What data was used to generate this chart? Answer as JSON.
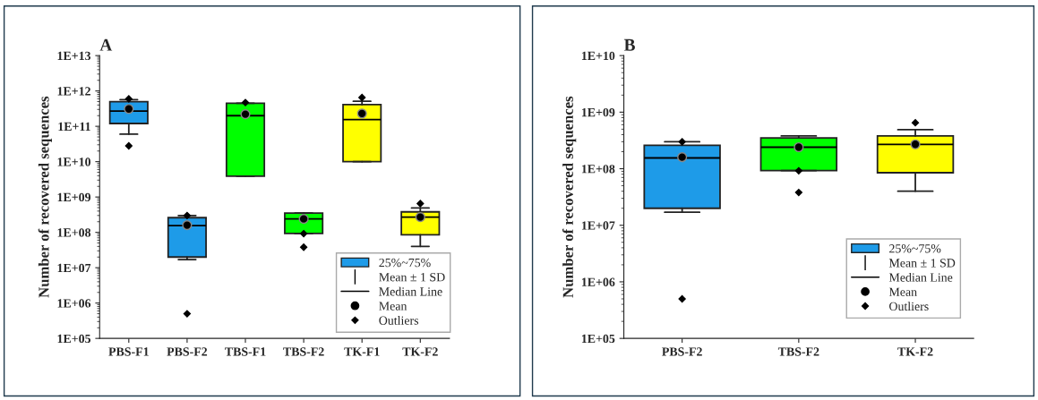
{
  "chart_data": [
    {
      "type": "box",
      "title": "A",
      "ylabel": "Number of recovered sequences",
      "log": true,
      "legend": "bottom right",
      "grid": false,
      "categories": [
        "PBS-F1",
        "PBS-F2",
        "TBS-F1",
        "TBS-F2",
        "TK-F1",
        "TK-F2"
      ],
      "ylim": [
        100000.0,
        10000000000000.0
      ],
      "yticks": [
        {
          "value": 100000.0,
          "label": "1E+05"
        },
        {
          "value": 1000000.0,
          "label": "1E+06"
        },
        {
          "value": 10000000.0,
          "label": "1E+07"
        },
        {
          "value": 100000000.0,
          "label": "1E+08"
        },
        {
          "value": 1000000000.0,
          "label": "1E+09"
        },
        {
          "value": 10000000000.0,
          "label": "1E+10"
        },
        {
          "value": 100000000000.0,
          "label": "1E+11"
        },
        {
          "value": 1000000000000.0,
          "label": "1E+12"
        },
        {
          "value": 10000000000000.0,
          "label": "1E+13"
        }
      ],
      "series": [
        {
          "name": "25%~75%",
          "colors": [
            "#1e9be8",
            "#1e9be8",
            "#00ff00",
            "#00ff00",
            "#ffff00",
            "#ffff00"
          ],
          "boxes": [
            {
              "low": 60000000000.0,
              "q1": 120000000000.0,
              "median": 270000000000.0,
              "q3": 500000000000.0,
              "high": 570000000000.0,
              "mean": 310000000000.0,
              "outliers": [
                600000000000.0,
                28000000000.0
              ]
            },
            {
              "low": 17000000.0,
              "q1": 20000000.0,
              "median": 155000000.0,
              "q3": 260000000.0,
              "high": 300000000.0,
              "mean": 160000000.0,
              "outliers": [
                300000000.0,
                500000.0
              ]
            },
            {
              "low": 3900000000.0,
              "q1": 3900000000.0,
              "median": 200000000000.0,
              "q3": 450000000000.0,
              "high": 450000000000.0,
              "mean": 220000000000.0,
              "outliers": [
                470000000000.0
              ]
            },
            {
              "low": 93000000.0,
              "q1": 93000000.0,
              "median": 240000000.0,
              "q3": 350000000.0,
              "high": 350000000.0,
              "mean": 240000000.0,
              "outliers": [
                92000000.0,
                38000000.0
              ]
            },
            {
              "low": 10000000000.0,
              "q1": 10000000000.0,
              "median": 155000000000.0,
              "q3": 410000000000.0,
              "high": 510000000000.0,
              "mean": 230000000000.0,
              "outliers": [
                650000000000.0
              ]
            },
            {
              "low": 40000000.0,
              "q1": 85000000.0,
              "median": 270000000.0,
              "q3": 380000000.0,
              "high": 490000000.0,
              "mean": 270000000.0,
              "outliers": [
                650000000.0
              ]
            }
          ]
        }
      ],
      "annotations": [
        "Mean ± 1 SD",
        "Median Line",
        "Mean",
        "Outliers"
      ]
    },
    {
      "type": "box",
      "title": "B",
      "ylabel": "Number of recovered sequences",
      "log": true,
      "legend": "bottom right",
      "grid": false,
      "categories": [
        "PBS-F2",
        "TBS-F2",
        "TK-F2"
      ],
      "ylim": [
        100000.0,
        10000000000.0
      ],
      "yticks": [
        {
          "value": 100000.0,
          "label": "1E+05"
        },
        {
          "value": 1000000.0,
          "label": "1E+06"
        },
        {
          "value": 10000000.0,
          "label": "1E+07"
        },
        {
          "value": 100000000.0,
          "label": "1E+08"
        },
        {
          "value": 1000000000.0,
          "label": "1E+09"
        },
        {
          "value": 10000000000.0,
          "label": "1E+10"
        }
      ],
      "series": [
        {
          "name": "25%~75%",
          "colors": [
            "#1e9be8",
            "#00ff00",
            "#ffff00"
          ],
          "boxes": [
            {
              "low": 17000000.0,
              "q1": 20000000.0,
              "median": 155000000.0,
              "q3": 260000000.0,
              "high": 300000000.0,
              "mean": 160000000.0,
              "outliers": [
                300000000.0,
                500000.0
              ]
            },
            {
              "low": 93000000.0,
              "q1": 93000000.0,
              "median": 240000000.0,
              "q3": 350000000.0,
              "high": 380000000.0,
              "mean": 240000000.0,
              "outliers": [
                92000000.0,
                38000000.0
              ]
            },
            {
              "low": 40000000.0,
              "q1": 85000000.0,
              "median": 270000000.0,
              "q3": 380000000.0,
              "high": 490000000.0,
              "mean": 270000000.0,
              "outliers": [
                650000000.0
              ]
            }
          ]
        }
      ],
      "annotations": [
        "Mean ± 1 SD",
        "Median Line",
        "Mean",
        "Outliers"
      ]
    }
  ]
}
